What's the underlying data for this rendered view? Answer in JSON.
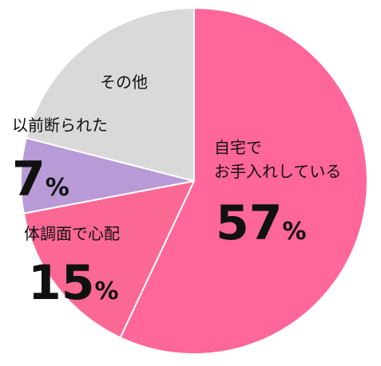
{
  "chart_data": {
    "type": "pie",
    "categories": [
      "自宅で\nお手入れしている",
      "体調面で心配",
      "以前断られた",
      "その他"
    ],
    "values": [
      57,
      15,
      7,
      21
    ],
    "value_labels": [
      "57%",
      "15%",
      "7%",
      null
    ],
    "colors": [
      "#ff6699",
      "#fb6894",
      "#b89ad6",
      "#d9d9d9"
    ]
  }
}
